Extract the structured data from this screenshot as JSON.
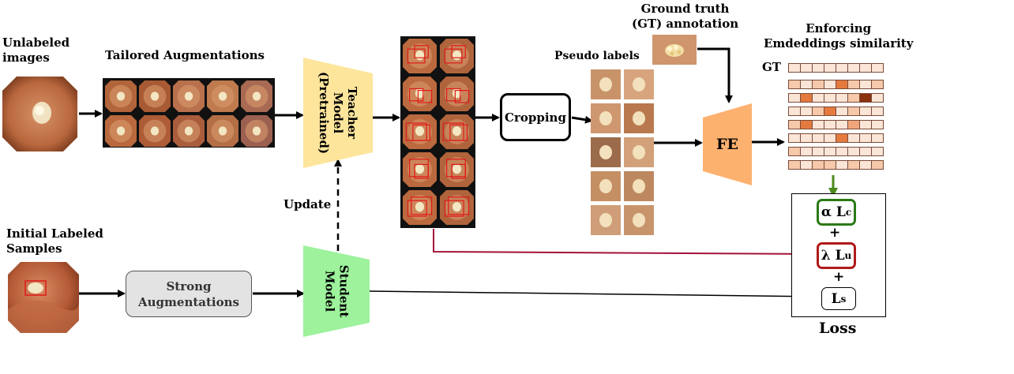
{
  "labels": {
    "unlabeled_line1": "Unlabeled",
    "unlabeled_line2": "images",
    "tailored": "Tailored Augmentations",
    "teacher_line1": "Teacher",
    "teacher_line2": "Model",
    "teacher_line3": "(Pretrained)",
    "update": "Update",
    "initial_line1": "Initial Labeled",
    "initial_line2": "Samples",
    "strong_line1": "Strong",
    "strong_line2": "Augmentations",
    "student_line1": "Student",
    "student_line2": "Model",
    "cropping": "Cropping",
    "pseudo": "Pseudo labels",
    "gt_line1": "Ground truth",
    "gt_line2": "(GT) annotation",
    "fe": "FE",
    "enforcing_line1": "Enforcing",
    "enforcing_line2": "Emdeddings similarity",
    "gt_row": "GT",
    "loss": "Loss",
    "plus1": "+",
    "plus2": "+"
  },
  "loss_terms": {
    "lc": {
      "prefix": "α L",
      "sub": "c"
    },
    "lu": {
      "prefix": "λ L",
      "sub": "u"
    },
    "ls": {
      "prefix": "L",
      "sub": "s"
    }
  },
  "colors": {
    "teacher": "#fde59b",
    "student": "#9df29b",
    "fe": "#fdb16f",
    "strong_box": "#e3e3e3",
    "lc_border": "#2a7a17",
    "lu_border": "#b01a1a",
    "green_arrow": "#4b8b1e",
    "red_line": "#a3123a",
    "tissue": "#c97a4a",
    "polyp": "#f3e6c2",
    "box_red": "#e01a1a"
  },
  "embedding_grid": {
    "gt_row": [
      1,
      1,
      1,
      1,
      1,
      1,
      1,
      1
    ],
    "rows": [
      [
        2,
        1,
        2,
        1,
        4,
        2,
        1,
        2
      ],
      [
        1,
        4,
        1,
        1,
        1,
        2,
        6,
        1
      ],
      [
        1,
        1,
        2,
        4,
        1,
        2,
        1,
        1
      ],
      [
        2,
        4,
        1,
        1,
        1,
        3,
        1,
        1
      ],
      [
        1,
        1,
        1,
        1,
        4,
        1,
        1,
        1
      ],
      [
        2,
        1,
        1,
        1,
        1,
        1,
        1,
        1
      ],
      [
        2,
        1,
        2,
        2,
        1,
        2,
        1,
        2
      ]
    ],
    "palette": [
      "#ffffff",
      "#fbe5d6",
      "#f5c9a9",
      "#f0a57a",
      "#e47a3e",
      "#c85a26",
      "#8b3110"
    ]
  }
}
